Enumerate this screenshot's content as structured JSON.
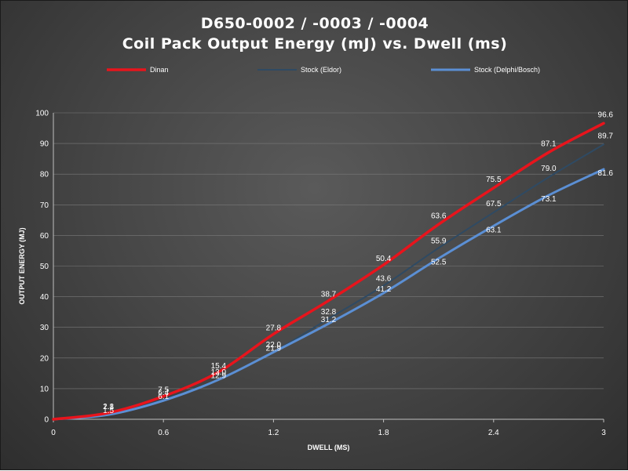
{
  "chart_data": {
    "type": "line",
    "title_line1": "D650-0002  /  -0003  /  -0004",
    "title_line2": "Coil  Pack  Output  Energy  (mJ)  vs.  Dwell  (ms)",
    "xlabel": "DWELL (MS)",
    "ylabel": "OUTPUT ENERGY (MJ)",
    "xlim": [
      0,
      3
    ],
    "ylim": [
      0,
      100
    ],
    "x_ticks": [
      0,
      0.6,
      1.2,
      1.8,
      2.4,
      3
    ],
    "x_tick_labels": [
      "0",
      "0.6",
      "1.2",
      "1.8",
      "2.4",
      "3"
    ],
    "y_ticks": [
      0,
      10,
      20,
      30,
      40,
      50,
      60,
      70,
      80,
      90,
      100
    ],
    "y_tick_labels": [
      "0",
      "10",
      "20",
      "30",
      "40",
      "50",
      "60",
      "70",
      "80",
      "90",
      "100"
    ],
    "grid": true,
    "legend_position": "top",
    "x": [
      0,
      0.3,
      0.6,
      0.9,
      1.2,
      1.5,
      1.8,
      2.1,
      2.4,
      2.7,
      3.0
    ],
    "series": [
      {
        "name": "Dinan",
        "color": "#e8141c",
        "values": [
          0,
          2.1,
          7.5,
          15.4,
          27.8,
          38.7,
          50.4,
          63.6,
          75.5,
          87.1,
          96.6
        ],
        "labels": [
          "",
          "2.1",
          "7.5",
          "15.4",
          "27.8",
          "38.7",
          "50.4",
          "63.6",
          "75.5",
          "87.1",
          "96.6"
        ]
      },
      {
        "name": "Stock (Eldor)",
        "color": "#2f4a63",
        "values": [
          0,
          1.8,
          6.4,
          13.0,
          22.0,
          32.8,
          43.6,
          55.9,
          67.5,
          79.0,
          89.7
        ],
        "labels": [
          "",
          "1.8",
          "6.4",
          "13.0",
          "22.0",
          "32.8",
          "43.6",
          "55.9",
          "67.5",
          "79.0",
          "89.7"
        ]
      },
      {
        "name": "Stock (Delphi/Bosch)",
        "color": "#5b8fd4",
        "values": [
          0,
          1.5,
          6.1,
          12.9,
          21.9,
          31.2,
          41.2,
          52.5,
          63.1,
          73.1,
          81.6
        ],
        "labels": [
          "",
          "1.5",
          "6.1",
          "12.9",
          "21.9",
          "31.2",
          "41.2",
          "52.5",
          "63.1",
          "73.1",
          "81.6"
        ]
      }
    ]
  }
}
